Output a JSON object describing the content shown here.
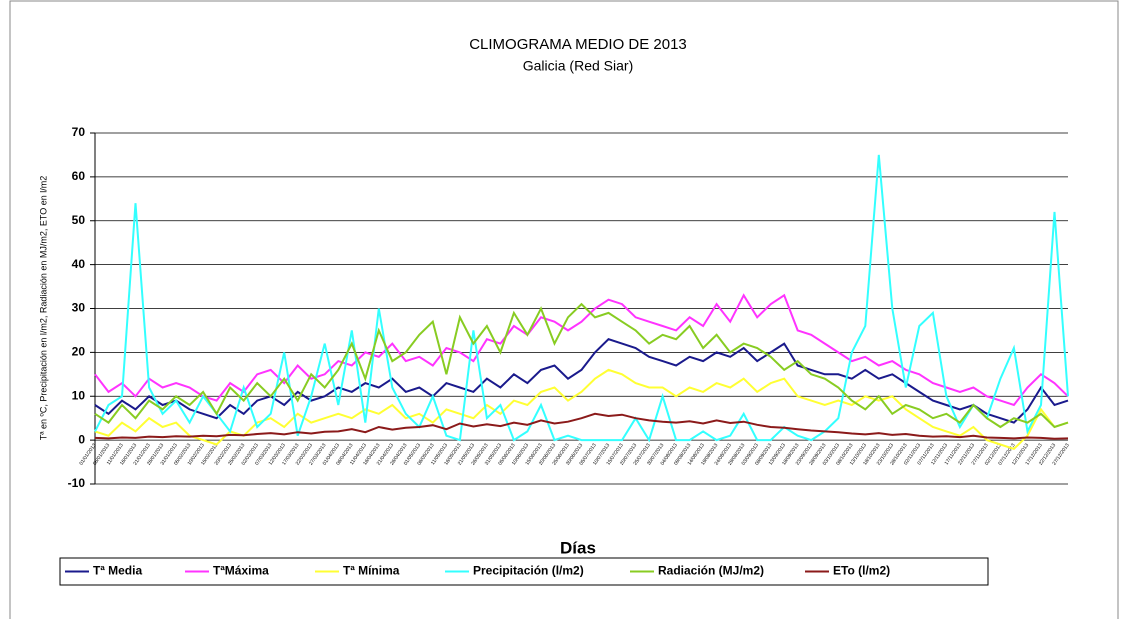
{
  "chart_data": {
    "type": "line",
    "title": "CLIMOGRAMA MEDIO DE 2013",
    "subtitle": "Galicia (Red Siar)",
    "y_label": "Tª en ºC, Precipitación en l/m2, Radiación en MJ/m2, ETO en l/m2",
    "x_label": "Días",
    "legend": "bottom",
    "grid": true,
    "ylim": [
      -10,
      70
    ],
    "yticks": [
      -10,
      0,
      10,
      20,
      30,
      40,
      50,
      60,
      70
    ],
    "categories": [
      "01/01/2013",
      "06/01/2013",
      "11/01/2013",
      "16/01/2013",
      "21/01/2013",
      "26/01/2013",
      "31/01/2013",
      "05/02/2013",
      "10/02/2013",
      "15/02/2013",
      "20/02/2013",
      "25/02/2013",
      "02/03/2013",
      "07/03/2013",
      "12/03/2013",
      "17/03/2013",
      "22/03/2013",
      "27/03/2013",
      "01/04/2013",
      "06/04/2013",
      "11/04/2013",
      "16/04/2013",
      "21/04/2013",
      "26/04/2013",
      "01/05/2013",
      "06/05/2013",
      "11/05/2013",
      "16/05/2013",
      "21/05/2013",
      "26/05/2013",
      "31/05/2013",
      "05/06/2013",
      "10/06/2013",
      "15/06/2013",
      "20/06/2013",
      "25/06/2013",
      "30/06/2013",
      "05/07/2013",
      "10/07/2013",
      "15/07/2013",
      "20/07/2013",
      "25/07/2013",
      "30/07/2013",
      "04/08/2013",
      "09/08/2013",
      "14/08/2013",
      "19/08/2013",
      "24/08/2013",
      "29/08/2013",
      "03/09/2013",
      "08/09/2013",
      "13/09/2013",
      "18/09/2013",
      "23/09/2013",
      "28/09/2013",
      "03/10/2013",
      "08/10/2013",
      "13/10/2013",
      "18/10/2013",
      "23/10/2013",
      "28/10/2013",
      "02/11/2013",
      "07/11/2013",
      "12/11/2013",
      "17/11/2013",
      "22/11/2013",
      "27/11/2013",
      "02/12/2013",
      "07/12/2013",
      "12/12/2013",
      "17/12/2013",
      "22/12/2013",
      "27/12/2013"
    ],
    "series": [
      {
        "name": "Tª Media",
        "color": "#1a1a8c",
        "values": [
          8,
          6,
          9,
          7,
          10,
          8,
          9,
          7,
          6,
          5,
          8,
          6,
          9,
          10,
          8,
          11,
          9,
          10,
          12,
          11,
          13,
          12,
          14,
          11,
          12,
          10,
          13,
          12,
          11,
          14,
          12,
          15,
          13,
          16,
          17,
          14,
          16,
          20,
          23,
          22,
          21,
          19,
          18,
          17,
          19,
          18,
          20,
          19,
          21,
          18,
          20,
          22,
          17,
          16,
          15,
          15,
          14,
          16,
          14,
          15,
          13,
          11,
          9,
          8,
          7,
          8,
          6,
          5,
          4,
          7,
          12,
          8,
          9
        ]
      },
      {
        "name": "TªMáxima",
        "color": "#ff33ff",
        "values": [
          15,
          11,
          13,
          10,
          14,
          12,
          13,
          12,
          10,
          9,
          13,
          11,
          15,
          16,
          13,
          17,
          14,
          15,
          18,
          17,
          20,
          19,
          22,
          18,
          19,
          17,
          21,
          20,
          18,
          23,
          22,
          26,
          24,
          28,
          27,
          25,
          27,
          30,
          32,
          31,
          28,
          27,
          26,
          25,
          28,
          26,
          31,
          27,
          33,
          28,
          31,
          33,
          25,
          24,
          22,
          20,
          18,
          19,
          17,
          18,
          16,
          15,
          13,
          12,
          11,
          12,
          10,
          9,
          8,
          12,
          15,
          13,
          10
        ]
      },
      {
        "name": "Tª Mínima",
        "color": "#ffff33",
        "values": [
          2,
          1,
          4,
          2,
          5,
          3,
          4,
          1,
          0,
          -1,
          2,
          1,
          4,
          5,
          3,
          6,
          4,
          5,
          6,
          5,
          7,
          6,
          8,
          5,
          6,
          4,
          7,
          6,
          5,
          8,
          6,
          9,
          8,
          11,
          12,
          9,
          11,
          14,
          16,
          15,
          13,
          12,
          12,
          10,
          12,
          11,
          13,
          12,
          14,
          11,
          13,
          14,
          10,
          9,
          8,
          9,
          8,
          10,
          9,
          10,
          7,
          5,
          3,
          2,
          1,
          3,
          0,
          -1,
          -2,
          1,
          7,
          3,
          4
        ]
      },
      {
        "name": "Precipitación (l/m2)",
        "color": "#33ffff",
        "values": [
          2,
          8,
          10,
          54,
          12,
          6,
          9,
          4,
          10,
          6,
          2,
          12,
          3,
          6,
          20,
          1,
          10,
          22,
          8,
          25,
          4,
          30,
          12,
          6,
          3,
          10,
          1,
          0,
          25,
          5,
          8,
          0,
          2,
          8,
          0,
          1,
          0,
          0,
          0,
          0,
          5,
          0,
          10,
          0,
          0,
          2,
          0,
          1,
          6,
          0,
          0,
          3,
          1,
          0,
          2,
          5,
          20,
          26,
          65,
          30,
          12,
          26,
          29,
          10,
          3,
          8,
          5,
          14,
          21,
          2,
          8,
          52,
          10
        ]
      },
      {
        "name": "Radiación (MJ/m2)",
        "color": "#88cc22",
        "values": [
          6,
          4,
          8,
          5,
          9,
          7,
          10,
          8,
          11,
          6,
          12,
          9,
          13,
          10,
          14,
          9,
          15,
          12,
          16,
          22,
          14,
          25,
          18,
          20,
          24,
          27,
          15,
          28,
          22,
          26,
          20,
          29,
          24,
          30,
          22,
          28,
          31,
          28,
          29,
          27,
          25,
          22,
          24,
          23,
          26,
          21,
          24,
          20,
          22,
          21,
          19,
          16,
          18,
          15,
          14,
          12,
          9,
          7,
          10,
          6,
          8,
          7,
          5,
          6,
          4,
          8,
          5,
          3,
          5,
          4,
          6,
          3,
          4
        ]
      },
      {
        "name": "ETo (l/m2)",
        "color": "#8b1a1a",
        "values": [
          0.5,
          0.4,
          0.6,
          0.5,
          0.8,
          0.7,
          0.9,
          0.8,
          1,
          0.9,
          1.2,
          1.1,
          1.4,
          1.6,
          1.3,
          1.8,
          1.5,
          1.9,
          2,
          2.5,
          1.8,
          3,
          2.4,
          2.8,
          3,
          3.4,
          2.5,
          3.8,
          3.1,
          3.6,
          3.2,
          4,
          3.5,
          4.5,
          3.8,
          4.2,
          5,
          6,
          5.5,
          5.8,
          5,
          4.5,
          4.2,
          4,
          4.3,
          3.8,
          4.5,
          3.9,
          4.2,
          3.5,
          3,
          2.8,
          2.5,
          2.2,
          2,
          1.8,
          1.5,
          1.3,
          1.6,
          1.2,
          1.4,
          1,
          0.8,
          0.9,
          0.7,
          1,
          0.6,
          0.5,
          0.4,
          0.6,
          0.5,
          0.3,
          0.4
        ]
      }
    ]
  }
}
